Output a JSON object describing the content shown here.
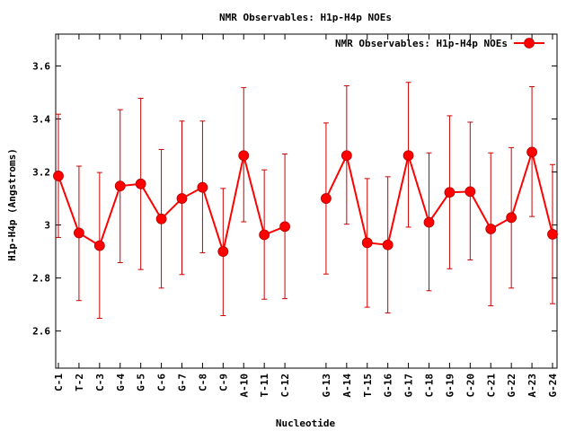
{
  "chart_data": {
    "type": "line",
    "title": "NMR Observables: H1p-H4p NOEs",
    "xlabel": "Nucleotide",
    "ylabel": "H1p-H4p (Angstroms)",
    "ylim": [
      2.46,
      3.72
    ],
    "yticks": [
      "2.6",
      "2.8",
      "3",
      "3.2",
      "3.4",
      "3.6"
    ],
    "ytick_values": [
      2.6,
      2.8,
      3.0,
      3.2,
      3.4,
      3.6
    ],
    "grid": false,
    "legend": {
      "position": "top-right",
      "label": "NMR Observables: H1p-H4p NOEs"
    },
    "colors": {
      "series": "#ff0000",
      "errorbar": "#cc0000",
      "axis": "#000000"
    },
    "categories": [
      "C-1",
      "T-2",
      "C-3",
      "G-4",
      "G-5",
      "C-6",
      "G-7",
      "C-8",
      "C-9",
      "A-10",
      "T-11",
      "C-12",
      "",
      "G-13",
      "A-14",
      "T-15",
      "G-16",
      "G-17",
      "C-18",
      "G-19",
      "C-20",
      "C-21",
      "G-22",
      "A-23",
      "G-24"
    ],
    "series": [
      {
        "name": "NMR Observables: H1p-H4p NOEs",
        "values": [
          3.185,
          2.97,
          2.922,
          3.147,
          3.155,
          3.023,
          3.1,
          3.142,
          2.9,
          3.262,
          2.963,
          2.994,
          null,
          3.1,
          3.262,
          2.933,
          2.925,
          3.262,
          3.01,
          3.123,
          3.126,
          2.985,
          3.028,
          3.275,
          2.965
        ],
        "err_low": [
          2.953,
          2.715,
          2.648,
          2.858,
          2.832,
          2.762,
          2.813,
          2.895,
          2.658,
          3.012,
          2.72,
          2.722,
          null,
          2.815,
          3.003,
          2.69,
          2.668,
          2.992,
          2.752,
          2.835,
          2.868,
          2.695,
          2.762,
          3.032,
          2.703
        ],
        "err_high": [
          3.418,
          3.222,
          3.198,
          3.435,
          3.478,
          3.285,
          3.392,
          3.392,
          3.138,
          3.518,
          3.208,
          3.268,
          null,
          3.385,
          3.525,
          3.175,
          3.182,
          3.538,
          3.272,
          3.412,
          3.388,
          3.272,
          3.292,
          3.522,
          3.228
        ]
      }
    ]
  }
}
